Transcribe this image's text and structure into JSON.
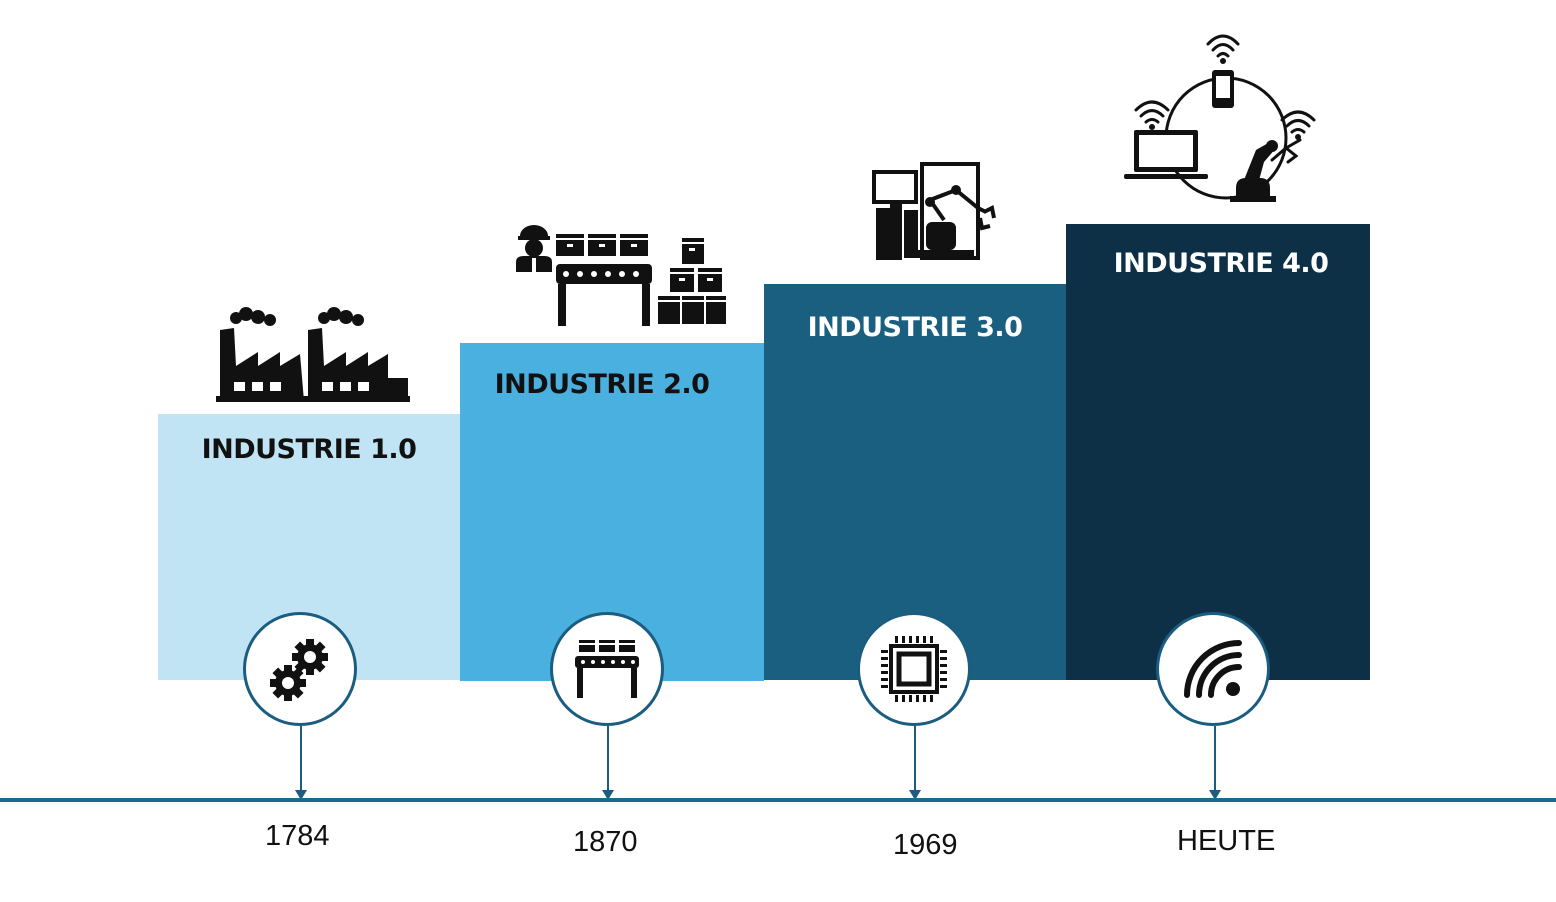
{
  "colors": {
    "step_1": "#c1e4f5",
    "step_2": "#49b0e0",
    "step_3": "#1a5f80",
    "step_4": "#0e3046",
    "title_dark": "#111111",
    "title_light": "#ffffff",
    "timeline": "#1a6a8e"
  },
  "stages": [
    {
      "title": "INDUSTRIE 1.0",
      "year": "1784",
      "icon": "gears-icon",
      "illustration": "factory-icon"
    },
    {
      "title": "INDUSTRIE 2.0",
      "year": "1870",
      "icon": "conveyor-icon",
      "illustration": "assembly-line-icon"
    },
    {
      "title": "INDUSTRIE 3.0",
      "year": "1969",
      "icon": "chip-icon",
      "illustration": "computer-robot-icon"
    },
    {
      "title": "INDUSTRIE 4.0",
      "year": "HEUTE",
      "icon": "wifi-icon",
      "illustration": "iot-network-icon"
    }
  ]
}
